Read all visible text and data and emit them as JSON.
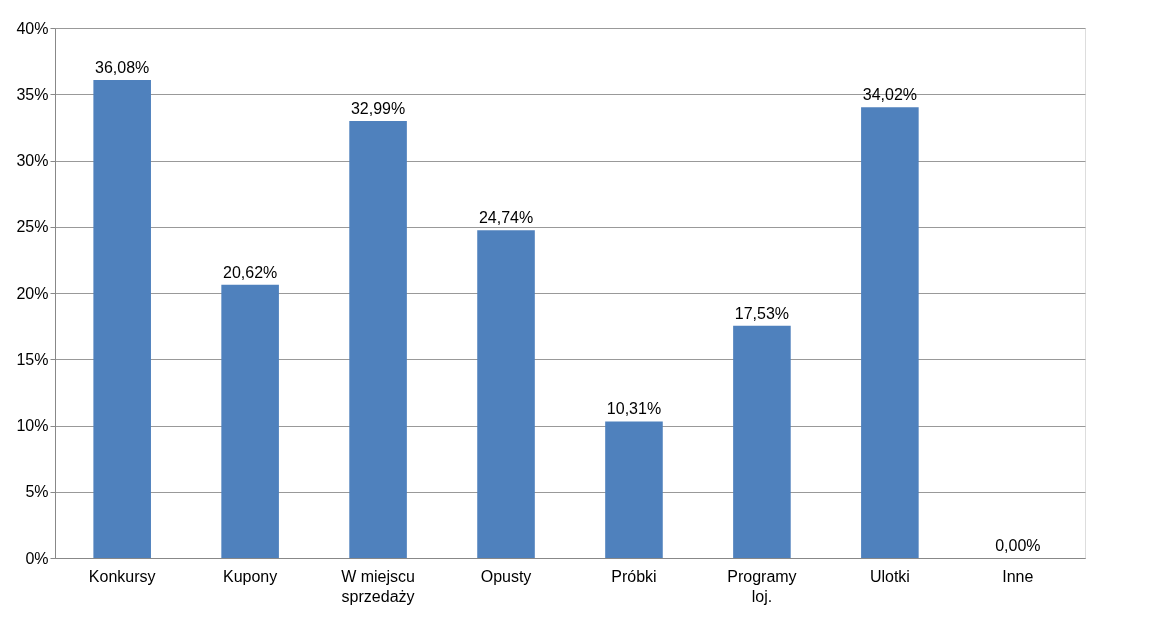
{
  "chart_data": {
    "type": "bar",
    "categories": [
      "Konkursy",
      "Kupony",
      "W miejscu sprzedaży",
      "Opusty",
      "Próbki",
      "Programy loj.",
      "Ulotki",
      "Inne"
    ],
    "values": [
      36.08,
      20.62,
      32.99,
      24.74,
      10.31,
      17.53,
      34.02,
      0.0
    ],
    "value_labels": [
      "36,08%",
      "20,62%",
      "32,99%",
      "24,74%",
      "10,31%",
      "17,53%",
      "34,02%",
      "0,00%"
    ],
    "color": "#4f81bd",
    "ylim": [
      0,
      40
    ],
    "yticks": [
      {
        "value": 0,
        "label": "0%"
      },
      {
        "value": 5,
        "label": "5%"
      },
      {
        "value": 10,
        "label": "10%"
      },
      {
        "value": 15,
        "label": "15%"
      },
      {
        "value": 20,
        "label": "20%"
      },
      {
        "value": 25,
        "label": "25%"
      },
      {
        "value": 30,
        "label": "30%"
      },
      {
        "value": 35,
        "label": "35%"
      },
      {
        "value": 40,
        "label": "40%"
      }
    ],
    "grid": "y"
  }
}
